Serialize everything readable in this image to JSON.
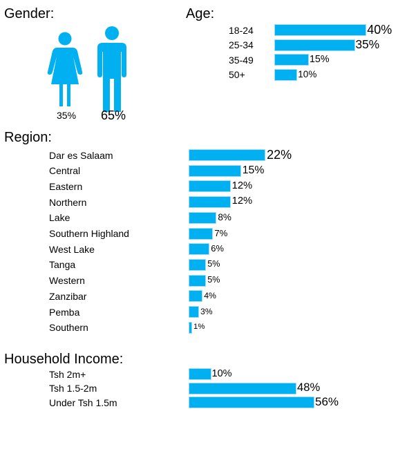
{
  "colors": {
    "bar": "#00b0f0",
    "figure": "#00b0f0"
  },
  "gender": {
    "title": "Gender:",
    "female_icon": "female-figure-icon",
    "male_icon": "male-figure-icon",
    "female_pct": "35%",
    "male_pct": "65%"
  },
  "chart_data": [
    {
      "type": "bar",
      "orientation": "horizontal",
      "title": "Age:",
      "categories": [
        "18-24",
        "25-34",
        "35-49",
        "50+"
      ],
      "values": [
        40,
        35,
        15,
        10
      ],
      "value_labels": [
        "40%",
        "35%",
        "15%",
        "10%"
      ],
      "unit": "%"
    },
    {
      "type": "bar",
      "orientation": "horizontal",
      "title": "Region:",
      "categories": [
        "Dar es Salaam",
        "Central",
        "Eastern",
        "Northern",
        "Lake",
        "Southern Highland",
        "West Lake",
        "Tanga",
        "Western",
        "Zanzibar",
        "Pemba",
        "Southern"
      ],
      "values": [
        22,
        15,
        12,
        12,
        8,
        7,
        6,
        5,
        5,
        4,
        3,
        1
      ],
      "value_labels": [
        "22%",
        "15%",
        "12%",
        "12%",
        "8%",
        "7%",
        "6%",
        "5%",
        "5%",
        "4%",
        "3%",
        "1%"
      ],
      "unit": "%"
    },
    {
      "type": "bar",
      "orientation": "horizontal",
      "title": "Household Income:",
      "categories": [
        "Tsh 2m+",
        "Tsh 1.5-2m",
        "Under Tsh 1.5m"
      ],
      "values": [
        10,
        48,
        56
      ],
      "value_labels": [
        "10%",
        "48%",
        "56%"
      ],
      "unit": "%"
    },
    {
      "type": "pictograph",
      "title": "Gender:",
      "categories": [
        "Female",
        "Male"
      ],
      "values": [
        35,
        65
      ],
      "unit": "%"
    }
  ]
}
